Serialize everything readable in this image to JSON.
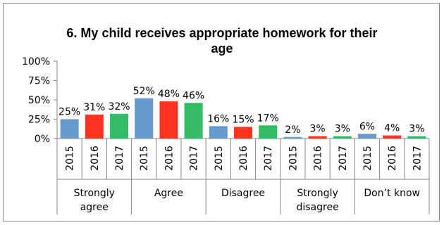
{
  "chart_data": {
    "type": "bar",
    "title_lines": [
      "6. My child receives appropriate homework for their",
      "age"
    ],
    "ylim": [
      0,
      1
    ],
    "yticks": [
      "0%",
      "25%",
      "50%",
      "75%",
      "100%"
    ],
    "grid": false,
    "legend": "none",
    "groups": [
      {
        "category_lines": [
          "Strongly",
          "agree"
        ],
        "years": [
          "2015",
          "2016",
          "2017"
        ],
        "values": [
          0.25,
          0.31,
          0.32
        ],
        "labels": [
          "25%",
          "31%",
          "32%"
        ]
      },
      {
        "category_lines": [
          "Agree"
        ],
        "years": [
          "2015",
          "2016",
          "2017"
        ],
        "values": [
          0.52,
          0.48,
          0.46
        ],
        "labels": [
          "52%",
          "48%",
          "46%"
        ]
      },
      {
        "category_lines": [
          "Disagree"
        ],
        "years": [
          "2015",
          "2016",
          "2017"
        ],
        "values": [
          0.16,
          0.15,
          0.17
        ],
        "labels": [
          "16%",
          "15%",
          "17%"
        ]
      },
      {
        "category_lines": [
          "Strongly",
          "disagree"
        ],
        "years": [
          "2015",
          "2016",
          "2017"
        ],
        "values": [
          0.02,
          0.03,
          0.03
        ],
        "labels": [
          "2%",
          "3%",
          "3%"
        ]
      },
      {
        "category_lines": [
          "Don’t know"
        ],
        "years": [
          "2015",
          "2016",
          "2017"
        ],
        "values": [
          0.06,
          0.04,
          0.03
        ],
        "labels": [
          "6%",
          "4%",
          "3%"
        ]
      }
    ],
    "colors": [
      "#6699cc",
      "#ff3322",
      "#33bb66"
    ]
  }
}
